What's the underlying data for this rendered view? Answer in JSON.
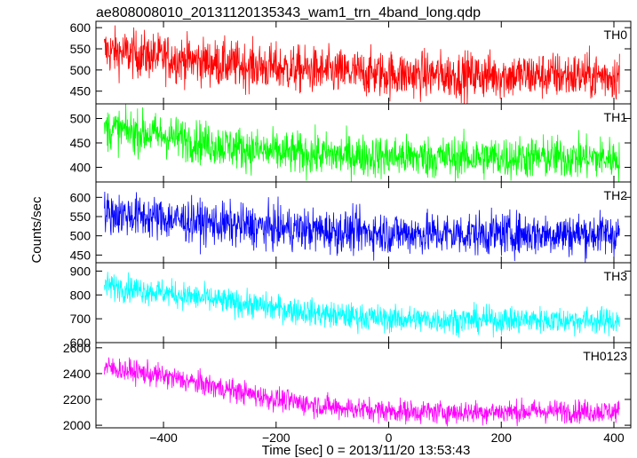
{
  "title": "ae808008010_20131120135343_wam1_trn_4band_long.qdp",
  "ylabel": "Counts/sec",
  "xlabel": "Time [sec] 0 = 2013/11/20 13:53:43",
  "chart_data": {
    "type": "line",
    "title": "ae808008010_20131120135343_wam1_trn_4band_long.qdp",
    "xlabel": "Time [sec] 0 = 2013/11/20 13:53:43",
    "ylabel": "Counts/sec",
    "xlim": [
      -520,
      430
    ],
    "xticks": [
      -400,
      -200,
      0,
      200,
      400
    ],
    "x_range_data": [
      -505,
      410
    ],
    "grid": false,
    "panels": [
      {
        "name": "TH0",
        "color": "#ff0000",
        "ylim": [
          420,
          615
        ],
        "yticks": [
          450,
          500,
          550,
          600
        ],
        "trend": {
          "x": [
            -505,
            -400,
            -300,
            -200,
            -100,
            0,
            100,
            200,
            300,
            410
          ],
          "y": [
            545,
            530,
            515,
            505,
            495,
            490,
            488,
            487,
            487,
            485
          ]
        },
        "noise": 28
      },
      {
        "name": "TH1",
        "color": "#00ff00",
        "ylim": [
          370,
          530
        ],
        "yticks": [
          400,
          450,
          500
        ],
        "trend": {
          "x": [
            -505,
            -400,
            -300,
            -200,
            -100,
            0,
            100,
            200,
            300,
            410
          ],
          "y": [
            480,
            465,
            445,
            430,
            425,
            422,
            420,
            420,
            420,
            418
          ]
        },
        "noise": 22
      },
      {
        "name": "TH2",
        "color": "#0000ff",
        "ylim": [
          430,
          640
        ],
        "yticks": [
          450,
          500,
          550,
          600
        ],
        "trend": {
          "x": [
            -505,
            -400,
            -300,
            -200,
            -100,
            0,
            100,
            200,
            300,
            410
          ],
          "y": [
            560,
            545,
            530,
            520,
            512,
            508,
            505,
            505,
            505,
            505
          ]
        },
        "noise": 28
      },
      {
        "name": "TH3",
        "color": "#00ffff",
        "ylim": [
          600,
          935
        ],
        "yticks": [
          600,
          700,
          800,
          900
        ],
        "trend": {
          "x": [
            -505,
            -400,
            -300,
            -200,
            -100,
            0,
            100,
            200,
            300,
            410
          ],
          "y": [
            840,
            810,
            775,
            745,
            715,
            700,
            695,
            695,
            695,
            690
          ]
        },
        "noise": 28
      },
      {
        "name": "TH0123",
        "color": "#ff00ff",
        "ylim": [
          1980,
          2640
        ],
        "yticks": [
          2000,
          2200,
          2400,
          2600
        ],
        "trend": {
          "x": [
            -505,
            -400,
            -300,
            -200,
            -100,
            0,
            100,
            200,
            300,
            410
          ],
          "y": [
            2450,
            2380,
            2290,
            2200,
            2140,
            2110,
            2100,
            2105,
            2110,
            2105
          ]
        },
        "noise": 45
      }
    ]
  }
}
